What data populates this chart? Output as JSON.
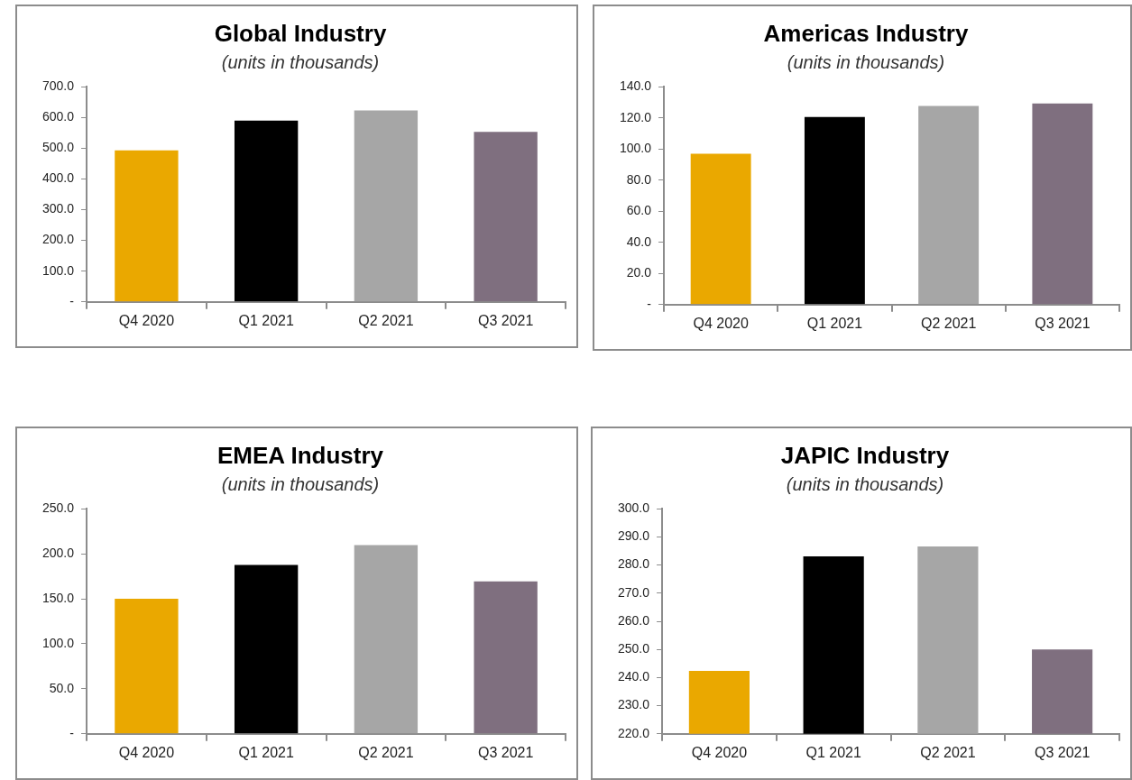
{
  "chart_data": [
    {
      "type": "bar",
      "title": "Global Industry",
      "subtitle": "(units in thousands)",
      "categories": [
        "Q4 2020",
        "Q1 2021",
        "Q2 2021",
        "Q3 2021"
      ],
      "values": [
        493,
        590,
        623,
        553
      ],
      "colors": [
        "#eaa800",
        "#000000",
        "#a6a6a6",
        "#7f6f7f"
      ],
      "ylim": [
        0,
        700
      ],
      "yticks": [
        {
          "value": 0,
          "label": "-"
        },
        {
          "value": 100,
          "label": "100.0"
        },
        {
          "value": 200,
          "label": "200.0"
        },
        {
          "value": 300,
          "label": "300.0"
        },
        {
          "value": 400,
          "label": "400.0"
        },
        {
          "value": 500,
          "label": "500.0"
        },
        {
          "value": 600,
          "label": "600.0"
        },
        {
          "value": 700,
          "label": "700.0"
        }
      ],
      "grid": false
    },
    {
      "type": "bar",
      "title": "Americas Industry",
      "subtitle": "(units in thousands)",
      "categories": [
        "Q4 2020",
        "Q1 2021",
        "Q2 2021",
        "Q3 2021"
      ],
      "values": [
        97,
        120.6,
        127.6,
        129.2
      ],
      "colors": [
        "#eaa800",
        "#000000",
        "#a6a6a6",
        "#7f6f7f"
      ],
      "ylim": [
        0,
        140
      ],
      "yticks": [
        {
          "value": 0,
          "label": "-"
        },
        {
          "value": 20,
          "label": "20.0"
        },
        {
          "value": 40,
          "label": "40.0"
        },
        {
          "value": 60,
          "label": "60.0"
        },
        {
          "value": 80,
          "label": "80.0"
        },
        {
          "value": 100,
          "label": "100.0"
        },
        {
          "value": 120,
          "label": "120.0"
        },
        {
          "value": 140,
          "label": "140.0"
        }
      ],
      "grid": false
    },
    {
      "type": "bar",
      "title": "EMEA Industry",
      "subtitle": "(units in thousands)",
      "categories": [
        "Q4 2020",
        "Q1 2021",
        "Q2 2021",
        "Q3 2021"
      ],
      "values": [
        150,
        187.6,
        209.7,
        169.4
      ],
      "colors": [
        "#eaa800",
        "#000000",
        "#a6a6a6",
        "#7f6f7f"
      ],
      "ylim": [
        0,
        250
      ],
      "yticks": [
        {
          "value": 0,
          "label": "-"
        },
        {
          "value": 50,
          "label": "50.0"
        },
        {
          "value": 100,
          "label": "100.0"
        },
        {
          "value": 150,
          "label": "150.0"
        },
        {
          "value": 200,
          "label": "200.0"
        },
        {
          "value": 250,
          "label": "250.0"
        }
      ],
      "grid": false
    },
    {
      "type": "bar",
      "title": "JAPIC Industry",
      "subtitle": "(units in thousands)",
      "categories": [
        "Q4 2020",
        "Q1 2021",
        "Q2 2021",
        "Q3 2021"
      ],
      "values": [
        242.4,
        283.1,
        286.6,
        250.0
      ],
      "colors": [
        "#eaa800",
        "#000000",
        "#a6a6a6",
        "#7f6f7f"
      ],
      "ylim": [
        220,
        300
      ],
      "yticks": [
        {
          "value": 220,
          "label": "220.0"
        },
        {
          "value": 230,
          "label": "230.0"
        },
        {
          "value": 240,
          "label": "240.0"
        },
        {
          "value": 250,
          "label": "250.0"
        },
        {
          "value": 260,
          "label": "260.0"
        },
        {
          "value": 270,
          "label": "270.0"
        },
        {
          "value": 280,
          "label": "280.0"
        },
        {
          "value": 290,
          "label": "290.0"
        },
        {
          "value": 300,
          "label": "300.0"
        }
      ],
      "grid": false
    }
  ]
}
